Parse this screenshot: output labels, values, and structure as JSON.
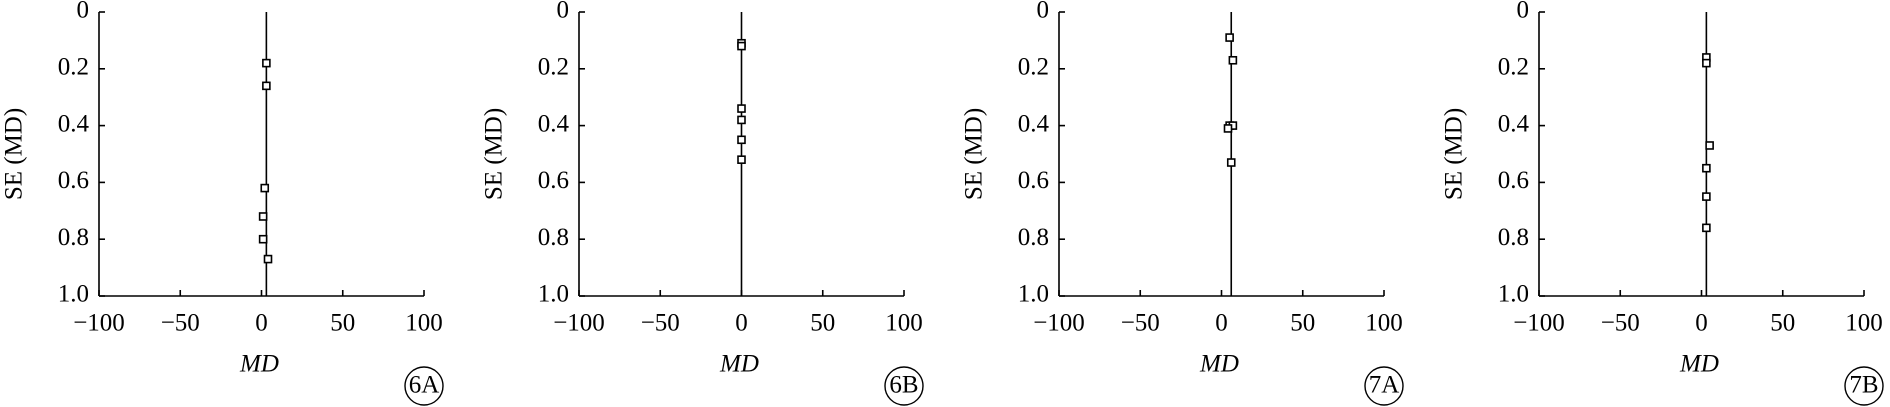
{
  "chart_data": [
    {
      "type": "scatter",
      "panel_label": "6A",
      "x_label": "MD",
      "y_label": "SE (MD)",
      "xlim": [
        -100,
        100
      ],
      "ylim": [
        0,
        1
      ],
      "y_inverted": true,
      "xticks": [
        {
          "value": -100,
          "label": "−100"
        },
        {
          "value": -50,
          "label": "−50"
        },
        0,
        50,
        100
      ],
      "yticks": [
        0,
        0.2,
        0.4,
        0.6,
        0.8,
        {
          "value": 1,
          "label": "1.0"
        }
      ],
      "reference_line": 3,
      "color": "#000000",
      "x": [
        3,
        3,
        2,
        1,
        1,
        4
      ],
      "values": [
        0.18,
        0.26,
        0.62,
        0.72,
        0.8,
        0.87
      ]
    },
    {
      "type": "scatter",
      "panel_label": "6B",
      "x_label": "MD",
      "y_label": "SE (MD)",
      "xlim": [
        -100,
        100
      ],
      "ylim": [
        0,
        1
      ],
      "y_inverted": true,
      "xticks": [
        {
          "value": -100,
          "label": "−100"
        },
        {
          "value": -50,
          "label": "−50"
        },
        0,
        50,
        100
      ],
      "yticks": [
        0,
        0.2,
        0.4,
        0.6,
        0.8,
        {
          "value": 1,
          "label": "1.0"
        }
      ],
      "reference_line": 0,
      "color": "#000000",
      "x": [
        0,
        0,
        0,
        0,
        0,
        0
      ],
      "values": [
        0.11,
        0.12,
        0.34,
        0.38,
        0.45,
        0.52
      ]
    },
    {
      "type": "scatter",
      "panel_label": "7A",
      "x_label": "MD",
      "y_label": "SE (MD)",
      "xlim": [
        -100,
        100
      ],
      "ylim": [
        0,
        1
      ],
      "y_inverted": true,
      "xticks": [
        {
          "value": -100,
          "label": "−100"
        },
        {
          "value": -50,
          "label": "−50"
        },
        0,
        50,
        100
      ],
      "yticks": [
        0,
        0.2,
        0.4,
        0.6,
        0.8,
        {
          "value": 1,
          "label": "1.0"
        }
      ],
      "reference_line": 6,
      "color": "#000000",
      "x": [
        5,
        7,
        5,
        7,
        4,
        6
      ],
      "values": [
        0.09,
        0.17,
        0.4,
        0.4,
        0.41,
        0.53
      ]
    },
    {
      "type": "scatter",
      "panel_label": "7B",
      "x_label": "MD",
      "y_label": "SE (MD)",
      "xlim": [
        -100,
        100
      ],
      "ylim": [
        0,
        1
      ],
      "y_inverted": true,
      "xticks": [
        {
          "value": -100,
          "label": "−100"
        },
        {
          "value": -50,
          "label": "−50"
        },
        0,
        50,
        100
      ],
      "yticks": [
        0,
        0.2,
        0.4,
        0.6,
        0.8,
        {
          "value": 1,
          "label": "1.0"
        }
      ],
      "reference_line": 3,
      "color": "#000000",
      "x": [
        3,
        3,
        5,
        3,
        3,
        3
      ],
      "values": [
        0.16,
        0.18,
        0.47,
        0.55,
        0.65,
        0.76
      ]
    }
  ]
}
